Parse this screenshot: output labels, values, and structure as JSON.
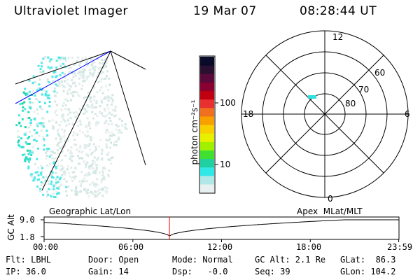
{
  "header": {
    "title": "Ultraviolet Imager",
    "date": "19 Mar 07",
    "time": "08:28:44 UT"
  },
  "colorbar": {
    "unit_label": "photon cm⁻²s⁻¹",
    "ticks": [
      "100",
      "10"
    ],
    "colors": [
      "#0a0a2a",
      "#2a1030",
      "#5a0a3a",
      "#8a0030",
      "#c00010",
      "#e83030",
      "#f07020",
      "#f8a000",
      "#f8d000",
      "#e8f000",
      "#a0f000",
      "#40e030",
      "#20d0a0",
      "#30e8e8",
      "#b0e8e8",
      "#e8f0f0"
    ]
  },
  "polar": {
    "clock_labels": [
      "12",
      "18",
      "6",
      "0"
    ],
    "lat_labels": [
      "60",
      "70",
      "80"
    ]
  },
  "timeline": {
    "ylabel": "GC Alt",
    "y_ticks": [
      "9.0",
      "1.8"
    ],
    "left_caption": "Geographic Lat/Lon",
    "right_caption": "Apex  MLat/MLT",
    "x_ticks": [
      "00:00",
      "06:00",
      "12:00",
      "18:00",
      "23:59"
    ],
    "marker_time": "08:28:44",
    "marker_color": "#ff0000"
  },
  "status": {
    "row1": [
      "Flt: LBHL",
      "Door: Open",
      "Mode: Normal",
      "GC Alt: 2.1 Re",
      "GLat:  86.3"
    ],
    "row2": [
      "IP: 36.0",
      "Gain: 14",
      "Dsp:   -0.0",
      "Seq: 39",
      "GLon: 104.2"
    ]
  }
}
